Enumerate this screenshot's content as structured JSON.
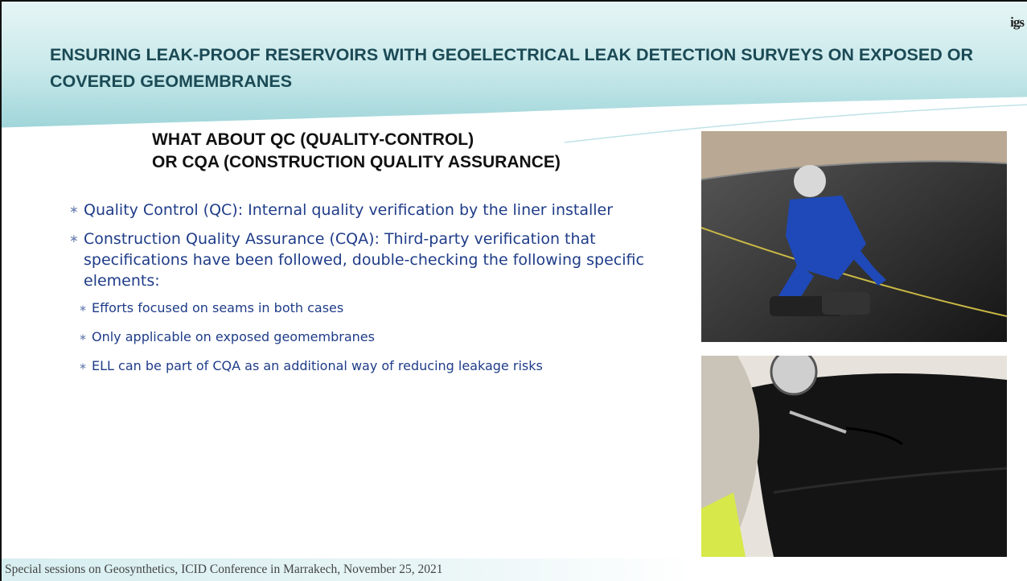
{
  "header": {
    "title": "ENSURING LEAK-PROOF RESERVOIRS WITH GEOELECTRICAL LEAK DETECTION SURVEYS ON EXPOSED OR COVERED GEOMEMBRANES",
    "logo": "igs"
  },
  "subtitle": [
    "WHAT ABOUT QC (QUALITY-CONTROL)",
    "OR CQA (CONSTRUCTION QUALITY ASSURANCE)"
  ],
  "bullets": [
    {
      "text": "Quality Control (QC): Internal quality verification by the liner installer"
    },
    {
      "text": "Construction Quality Assurance (CQA): Third-party verification that specifications have been followed, double-checking the following specific elements:",
      "subitems": [
        "Efforts focused on seams in both cases",
        "Only applicable on exposed geomembranes",
        "ELL can be part of CQA as an additional way of reducing leakage risks"
      ]
    }
  ],
  "footer": "Special sessions on Geosynthetics, ICID Conference in Marrakech, November 25, 2021"
}
